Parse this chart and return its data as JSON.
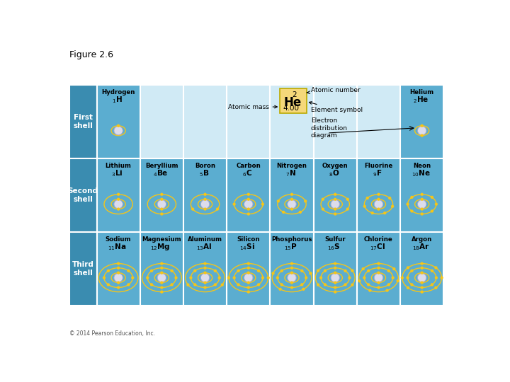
{
  "title": "Figure 2.6",
  "copyright": "© 2014 Pearson Education, Inc.",
  "bg_color": "#ffffff",
  "cell_bg_light": "#5badd0",
  "cell_bg_medium": "#4a9cc0",
  "header_bg": "#3a8cb0",
  "empty_cell_bg": "#d0eaf5",
  "label_box_color": "#f5d87a",
  "grid_line_color": "#ffffff",
  "text_color": "#000000",
  "electron_color": "#f5c518",
  "nucleus_color": "#dcdcec",
  "row_labels": [
    "First\nshell",
    "Second\nshell",
    "Third\nshell"
  ],
  "first_shell": [
    {
      "name": "Hydrogen",
      "symbol": "H",
      "atomic_num": 1,
      "electrons": [
        1
      ],
      "col": 0
    },
    {
      "name": "Helium",
      "symbol": "He",
      "atomic_num": 2,
      "electrons": [
        2
      ],
      "col": 7
    }
  ],
  "second_shell": [
    {
      "name": "Lithium",
      "symbol": "Li",
      "atomic_num": 3,
      "electrons": [
        2,
        1
      ],
      "col": 0
    },
    {
      "name": "Beryllium",
      "symbol": "Be",
      "atomic_num": 4,
      "electrons": [
        2,
        2
      ],
      "col": 1
    },
    {
      "name": "Boron",
      "symbol": "B",
      "atomic_num": 5,
      "electrons": [
        2,
        3
      ],
      "col": 2
    },
    {
      "name": "Carbon",
      "symbol": "C",
      "atomic_num": 6,
      "electrons": [
        2,
        4
      ],
      "col": 3
    },
    {
      "name": "Nitrogen",
      "symbol": "N",
      "atomic_num": 7,
      "electrons": [
        2,
        5
      ],
      "col": 4
    },
    {
      "name": "Oxygen",
      "symbol": "O",
      "atomic_num": 8,
      "electrons": [
        2,
        6
      ],
      "col": 5
    },
    {
      "name": "Fluorine",
      "symbol": "F",
      "atomic_num": 9,
      "electrons": [
        2,
        7
      ],
      "col": 6
    },
    {
      "name": "Neon",
      "symbol": "Ne",
      "atomic_num": 10,
      "electrons": [
        2,
        8
      ],
      "col": 7
    }
  ],
  "third_shell": [
    {
      "name": "Sodium",
      "symbol": "Na",
      "atomic_num": 11,
      "electrons": [
        2,
        8,
        1
      ],
      "col": 0
    },
    {
      "name": "Magnesium",
      "symbol": "Mg",
      "atomic_num": 12,
      "electrons": [
        2,
        8,
        2
      ],
      "col": 1
    },
    {
      "name": "Aluminum",
      "symbol": "Al",
      "atomic_num": 13,
      "electrons": [
        2,
        8,
        3
      ],
      "col": 2
    },
    {
      "name": "Silicon",
      "symbol": "Si",
      "atomic_num": 14,
      "electrons": [
        2,
        8,
        4
      ],
      "col": 3
    },
    {
      "name": "Phosphorus",
      "symbol": "P",
      "atomic_num": 15,
      "electrons": [
        2,
        8,
        5
      ],
      "col": 4
    },
    {
      "name": "Sulfur",
      "symbol": "S",
      "atomic_num": 16,
      "electrons": [
        2,
        8,
        6
      ],
      "col": 5
    },
    {
      "name": "Chlorine",
      "symbol": "Cl",
      "atomic_num": 17,
      "electrons": [
        2,
        8,
        7
      ],
      "col": 6
    },
    {
      "name": "Argon",
      "symbol": "Ar",
      "atomic_num": 18,
      "electrons": [
        2,
        8,
        8
      ],
      "col": 7
    }
  ],
  "annotation_box": {
    "atomic_num": "2",
    "symbol": "He",
    "atomic_mass": "4.00"
  }
}
